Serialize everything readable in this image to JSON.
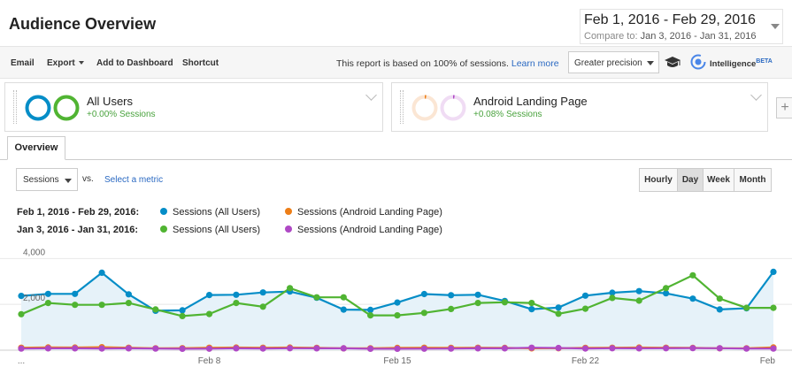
{
  "header": {
    "title": "Audience Overview",
    "date_range": "Feb 1, 2016 - Feb 29, 2016",
    "compare_label": "Compare to:",
    "compare_range": "Jan 3, 2016 - Jan 31, 2016"
  },
  "toolbar": {
    "email": "Email",
    "export": "Export",
    "add_to_dashboard": "Add to Dashboard",
    "shortcut": "Shortcut",
    "report_note": "This report is based on 100% of sessions.",
    "learn_more": "Learn more",
    "precision": "Greater precision",
    "intelligence": "Intelligence",
    "beta": "BETA"
  },
  "segments": [
    {
      "name": "All Users",
      "sub": "+0.00% Sessions"
    },
    {
      "name": "Android Landing Page",
      "sub": "+0.08% Sessions"
    }
  ],
  "tabs": {
    "overview": "Overview"
  },
  "controls": {
    "metric": "Sessions",
    "vs": "vs.",
    "select_metric": "Select a metric",
    "granularity": [
      "Hourly",
      "Day",
      "Week",
      "Month"
    ],
    "active_granularity": "Day"
  },
  "legend": {
    "row1_range": "Feb 1, 2016 - Feb 29, 2016:",
    "row2_range": "Jan 3, 2016 - Jan 31, 2016:",
    "entries": [
      {
        "label": "Sessions (All Users)",
        "color": "#058dc7"
      },
      {
        "label": "Sessions (Android Landing Page)",
        "color": "#ed7e17"
      },
      {
        "label": "Sessions (All Users)",
        "color": "#50b432"
      },
      {
        "label": "Sessions (Android Landing Page)",
        "color": "#af49c5"
      }
    ]
  },
  "chart_data": {
    "type": "line",
    "y_ticks": [
      "4,000",
      "2,000"
    ],
    "ylim": [
      0,
      4400
    ],
    "x_tick_labels": [
      "...",
      "Feb 8",
      "Feb 15",
      "Feb 22",
      "Feb"
    ],
    "series": [
      {
        "name": "Sessions (All Users) Feb 1, 2016 - Feb 29, 2016",
        "color": "#058dc7",
        "fill": true,
        "values": [
          2370,
          2460,
          2460,
          3380,
          2440,
          1720,
          1740,
          2410,
          2420,
          2520,
          2560,
          2290,
          1770,
          1760,
          2080,
          2450,
          2400,
          2420,
          2150,
          1790,
          1860,
          2380,
          2510,
          2580,
          2480,
          2250,
          1780,
          1830,
          3420
        ]
      },
      {
        "name": "Sessions (Android Landing Page) Feb 1, 2016 - Feb 29, 2016",
        "color": "#ed7e17",
        "fill": false,
        "values": [
          110,
          120,
          115,
          130,
          110,
          85,
          90,
          110,
          115,
          110,
          115,
          105,
          80,
          85,
          100,
          110,
          105,
          110,
          100,
          80,
          85,
          105,
          110,
          115,
          110,
          100,
          85,
          85,
          120
        ]
      },
      {
        "name": "Sessions (All Users) Jan 3, 2016 - Jan 31, 2016",
        "color": "#50b432",
        "fill": false,
        "values": [
          1570,
          2060,
          1980,
          1980,
          2060,
          1780,
          1490,
          1580,
          2060,
          1900,
          2710,
          2310,
          2310,
          1520,
          1520,
          1630,
          1800,
          2060,
          2090,
          2060,
          1590,
          1810,
          2280,
          2160,
          2710,
          3270,
          2250,
          1850,
          1850
        ]
      },
      {
        "name": "Sessions (Android Landing Page) Jan 3, 2016 - Jan 31, 2016",
        "color": "#af49c5",
        "fill": false,
        "values": [
          70,
          80,
          80,
          75,
          80,
          70,
          60,
          65,
          80,
          75,
          85,
          80,
          80,
          60,
          60,
          65,
          70,
          80,
          80,
          110,
          95,
          75,
          85,
          80,
          85,
          90,
          85,
          70,
          70
        ]
      }
    ]
  }
}
